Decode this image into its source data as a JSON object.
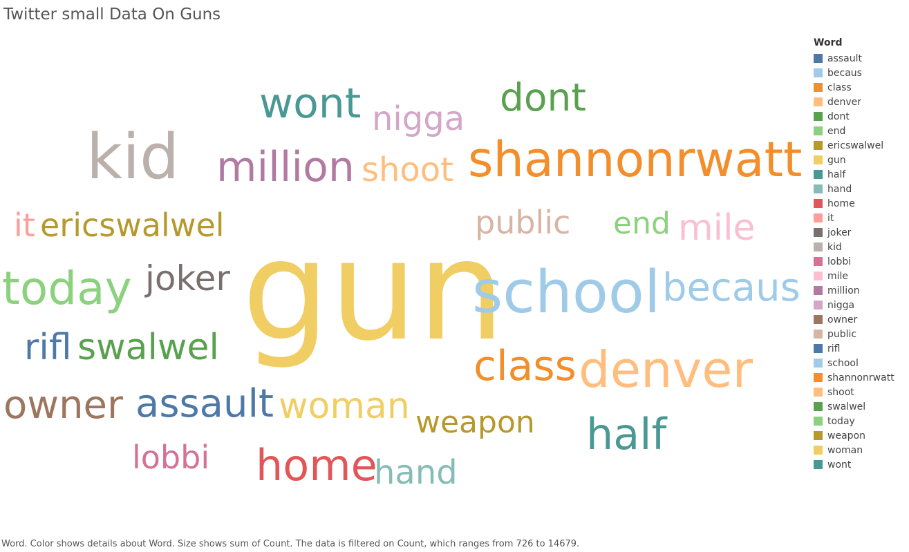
{
  "chart_data": {
    "type": "wordcloud",
    "title": "Twitter small Data On Guns",
    "legend": {
      "title": "Word",
      "placement": "right"
    },
    "footnote": "Word.  Color shows details about Word.  Size shows sum of Count. The data is filtered on Count, which ranges from 726 to 14679.",
    "count_range": [
      726,
      14679
    ],
    "words": [
      {
        "word": "assault",
        "color": "#4e79a7"
      },
      {
        "word": "becaus",
        "color": "#a0cbe8"
      },
      {
        "word": "class",
        "color": "#f28e2b"
      },
      {
        "word": "denver",
        "color": "#ffbe7d"
      },
      {
        "word": "dont",
        "color": "#59a14f"
      },
      {
        "word": "end",
        "color": "#8cd17d"
      },
      {
        "word": "ericswalwel",
        "color": "#b6992d"
      },
      {
        "word": "gun",
        "color": "#f1ce63"
      },
      {
        "word": "half",
        "color": "#499894"
      },
      {
        "word": "hand",
        "color": "#86bcb6"
      },
      {
        "word": "home",
        "color": "#e15759"
      },
      {
        "word": "it",
        "color": "#ff9d9a"
      },
      {
        "word": "joker",
        "color": "#79706e"
      },
      {
        "word": "kid",
        "color": "#bab0ac"
      },
      {
        "word": "lobbi",
        "color": "#d37295"
      },
      {
        "word": "mile",
        "color": "#fabfd2"
      },
      {
        "word": "million",
        "color": "#b07aa1"
      },
      {
        "word": "nigga",
        "color": "#d4a6c8"
      },
      {
        "word": "owner",
        "color": "#9d7660"
      },
      {
        "word": "public",
        "color": "#d7b5a6"
      },
      {
        "word": "rifl",
        "color": "#4e79a7"
      },
      {
        "word": "school",
        "color": "#a0cbe8"
      },
      {
        "word": "shannonrwatt",
        "color": "#f28e2b"
      },
      {
        "word": "shoot",
        "color": "#ffbe7d"
      },
      {
        "word": "swalwel",
        "color": "#59a14f"
      },
      {
        "word": "today",
        "color": "#8cd17d"
      },
      {
        "word": "weapon",
        "color": "#b6992d"
      },
      {
        "word": "woman",
        "color": "#f1ce63"
      },
      {
        "word": "wont",
        "color": "#499894"
      }
    ]
  }
}
